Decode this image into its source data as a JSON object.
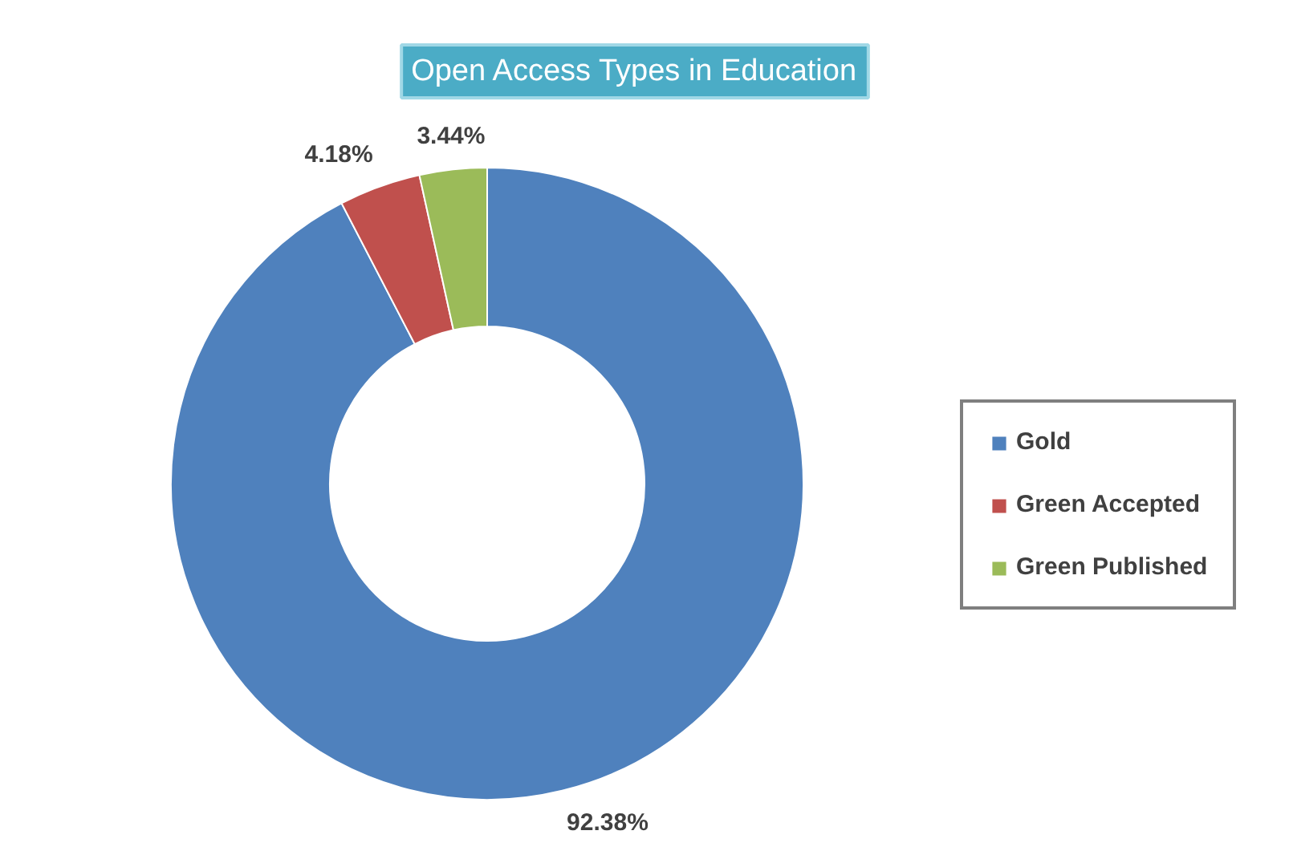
{
  "chart_data": {
    "type": "donut",
    "title": "Open Access Types in Education",
    "categories": [
      "Gold",
      "Green Accepted",
      "Green Published"
    ],
    "values": [
      92.38,
      4.18,
      3.44
    ],
    "colors": [
      "#4f81bd",
      "#c0504d",
      "#9bbb59"
    ],
    "value_labels": [
      "92.38%",
      "4.18%",
      "3.44%"
    ],
    "legend": "right"
  }
}
